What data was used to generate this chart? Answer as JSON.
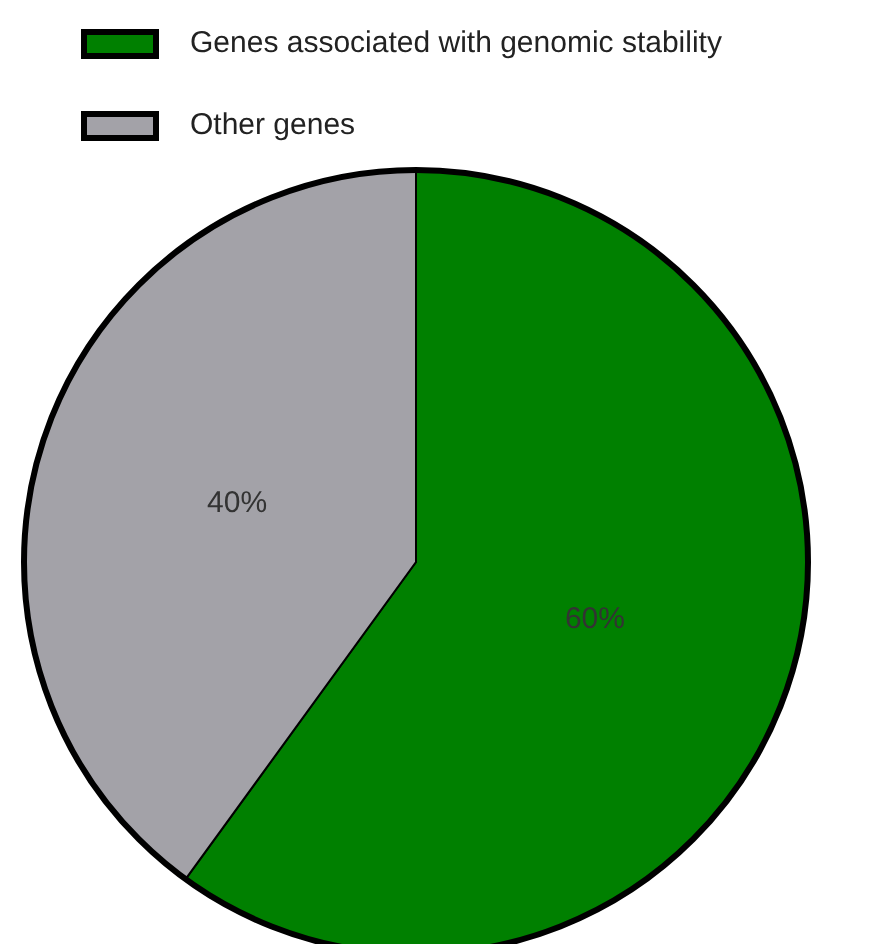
{
  "chart_data": {
    "type": "pie",
    "categories": [
      "Genes associated with genomic stability",
      "Other genes"
    ],
    "values": [
      60,
      40
    ],
    "colors": [
      "#008000",
      "#a3a2a8"
    ],
    "value_labels": [
      "60%",
      "40%"
    ],
    "legend": "top"
  }
}
